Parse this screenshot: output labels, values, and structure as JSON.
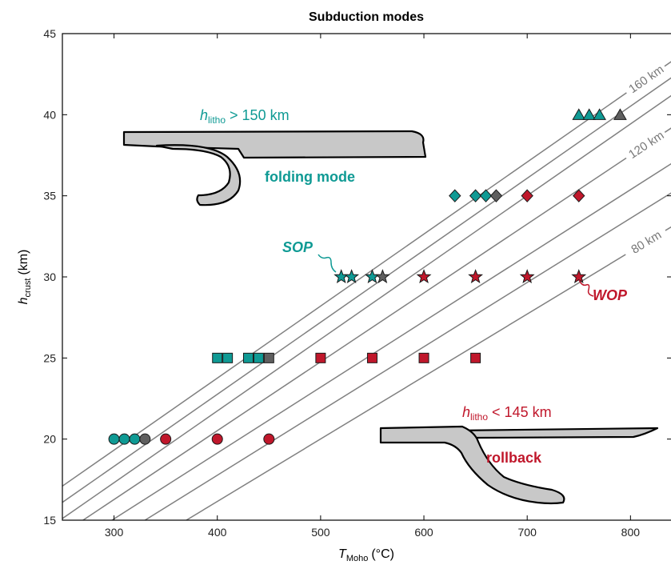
{
  "chart_data": {
    "type": "scatter",
    "title": "Subduction modes",
    "xlabel_main": "T",
    "xlabel_sub": "Moho",
    "xlabel_unit": "(°C)",
    "ylabel_main": "h",
    "ylabel_sub": "crust",
    "ylabel_unit": "(km)",
    "xlim": [
      250,
      840
    ],
    "ylim": [
      15,
      45
    ],
    "x_ticks": [
      300,
      400,
      500,
      600,
      700,
      800
    ],
    "y_ticks": [
      15,
      20,
      25,
      30,
      35,
      40,
      45
    ],
    "isolines": [
      {
        "label": "160 km",
        "points": [
          [
            250,
            17.1
          ],
          [
            840,
            43.3
          ]
        ],
        "show_label": true
      },
      {
        "label": "",
        "points": [
          [
            250,
            16.1
          ],
          [
            840,
            42.3
          ]
        ],
        "show_label": false
      },
      {
        "label": "",
        "points": [
          [
            250,
            15.1
          ],
          [
            840,
            41.2
          ]
        ],
        "show_label": false
      },
      {
        "label": "120 km",
        "points": [
          [
            270,
            15.0
          ],
          [
            840,
            39.2
          ]
        ],
        "show_label": true
      },
      {
        "label": "",
        "points": [
          [
            298,
            15.0
          ],
          [
            840,
            37.0
          ]
        ],
        "show_label": false
      },
      {
        "label": "",
        "points": [
          [
            330,
            15.0
          ],
          [
            840,
            35.2
          ]
        ],
        "show_label": false
      },
      {
        "label": "80 km",
        "points": [
          [
            370,
            15.0
          ],
          [
            840,
            33.1
          ]
        ],
        "show_label": true
      }
    ],
    "colors": {
      "folding": "#0f9a94",
      "transition": "#5f5f5f",
      "rollback": "#c0172b",
      "isoline": "#808080"
    },
    "series": [
      {
        "marker": "circle",
        "y": 20,
        "points": [
          {
            "x": 300,
            "mode": "folding"
          },
          {
            "x": 310,
            "mode": "folding"
          },
          {
            "x": 320,
            "mode": "folding"
          },
          {
            "x": 330,
            "mode": "transition"
          },
          {
            "x": 350,
            "mode": "rollback"
          },
          {
            "x": 400,
            "mode": "rollback"
          },
          {
            "x": 450,
            "mode": "rollback"
          }
        ]
      },
      {
        "marker": "square",
        "y": 25,
        "points": [
          {
            "x": 400,
            "mode": "folding"
          },
          {
            "x": 410,
            "mode": "folding"
          },
          {
            "x": 430,
            "mode": "folding"
          },
          {
            "x": 440,
            "mode": "folding"
          },
          {
            "x": 450,
            "mode": "transition"
          },
          {
            "x": 500,
            "mode": "rollback"
          },
          {
            "x": 550,
            "mode": "rollback"
          },
          {
            "x": 600,
            "mode": "rollback"
          },
          {
            "x": 650,
            "mode": "rollback"
          }
        ]
      },
      {
        "marker": "star",
        "y": 30,
        "points": [
          {
            "x": 520,
            "mode": "folding"
          },
          {
            "x": 530,
            "mode": "folding"
          },
          {
            "x": 550,
            "mode": "folding"
          },
          {
            "x": 560,
            "mode": "transition"
          },
          {
            "x": 600,
            "mode": "rollback"
          },
          {
            "x": 650,
            "mode": "rollback"
          },
          {
            "x": 700,
            "mode": "rollback"
          },
          {
            "x": 750,
            "mode": "rollback"
          }
        ]
      },
      {
        "marker": "diamond",
        "y": 35,
        "points": [
          {
            "x": 630,
            "mode": "folding"
          },
          {
            "x": 650,
            "mode": "folding"
          },
          {
            "x": 660,
            "mode": "folding"
          },
          {
            "x": 670,
            "mode": "transition"
          },
          {
            "x": 700,
            "mode": "rollback"
          },
          {
            "x": 750,
            "mode": "rollback"
          }
        ]
      },
      {
        "marker": "triangle",
        "y": 40,
        "points": [
          {
            "x": 750,
            "mode": "folding"
          },
          {
            "x": 760,
            "mode": "folding"
          },
          {
            "x": 770,
            "mode": "folding"
          },
          {
            "x": 790,
            "mode": "transition"
          }
        ]
      }
    ],
    "annotations": {
      "folding_criterion_h": "h",
      "folding_criterion_sub": "litho",
      "folding_criterion_rest": " > 150 km",
      "folding_label": "folding mode",
      "rollback_criterion_h": "h",
      "rollback_criterion_sub": "litho",
      "rollback_criterion_rest": " < 145 km",
      "rollback_label": "rollback",
      "sop": "SOP",
      "wop": "WOP"
    }
  }
}
